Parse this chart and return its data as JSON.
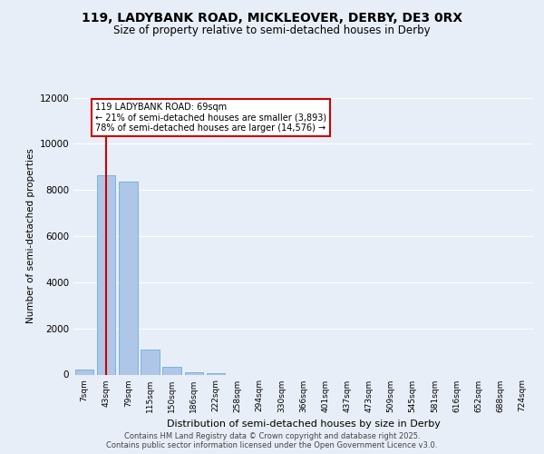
{
  "title_line1": "119, LADYBANK ROAD, MICKLEOVER, DERBY, DE3 0RX",
  "title_line2": "Size of property relative to semi-detached houses in Derby",
  "xlabel": "Distribution of semi-detached houses by size in Derby",
  "ylabel": "Number of semi-detached properties",
  "categories": [
    "7sqm",
    "43sqm",
    "79sqm",
    "115sqm",
    "150sqm",
    "186sqm",
    "222sqm",
    "258sqm",
    "294sqm",
    "330sqm",
    "366sqm",
    "401sqm",
    "437sqm",
    "473sqm",
    "509sqm",
    "545sqm",
    "581sqm",
    "616sqm",
    "652sqm",
    "688sqm",
    "724sqm"
  ],
  "bar_heights": [
    200,
    8650,
    8350,
    1100,
    350,
    100,
    50,
    0,
    0,
    0,
    0,
    0,
    0,
    0,
    0,
    0,
    0,
    0,
    0,
    0,
    0
  ],
  "bar_color": "#aec6e8",
  "bar_edge_color": "#6baed6",
  "vline_x": 1.0,
  "vline_color": "#cc0000",
  "annotation_title": "119 LADYBANK ROAD: 69sqm",
  "annotation_line2": "← 21% of semi-detached houses are smaller (3,893)",
  "annotation_line3": "78% of semi-detached houses are larger (14,576) →",
  "annotation_box_facecolor": "#ffffff",
  "annotation_box_edgecolor": "#cc0000",
  "ylim": [
    0,
    12000
  ],
  "yticks": [
    0,
    2000,
    4000,
    6000,
    8000,
    10000,
    12000
  ],
  "background_color": "#e8eef7",
  "plot_bg_color": "#e8eef7",
  "grid_color": "#ffffff",
  "footer_line1": "Contains HM Land Registry data © Crown copyright and database right 2025.",
  "footer_line2": "Contains public sector information licensed under the Open Government Licence v3.0."
}
